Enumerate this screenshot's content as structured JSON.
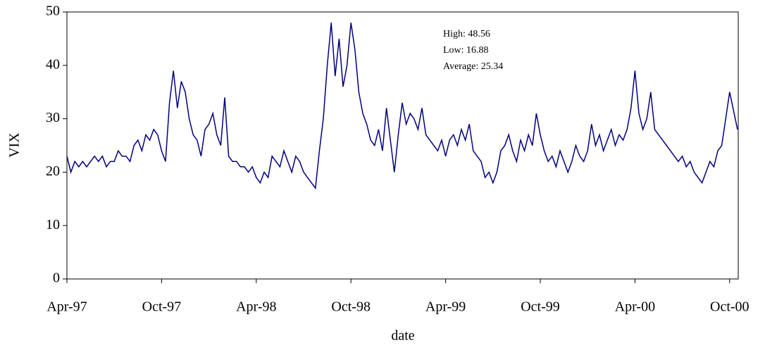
{
  "chart_data": {
    "type": "line",
    "title": null,
    "xlabel": "date",
    "ylabel": "VIX",
    "annotations": [
      "High: 48.56",
      "Low: 16.88",
      "Average: 25.34"
    ],
    "x": [
      "Apr-97",
      "Apr-97",
      "Apr-97",
      "Apr-97",
      "May-97",
      "May-97",
      "May-97",
      "May-97",
      "Jun-97",
      "Jun-97",
      "Jun-97",
      "Jun-97",
      "Jul-97",
      "Jul-97",
      "Jul-97",
      "Jul-97",
      "Aug-97",
      "Aug-97",
      "Aug-97",
      "Aug-97",
      "Sep-97",
      "Sep-97",
      "Sep-97",
      "Sep-97",
      "Oct-97",
      "Oct-97",
      "Oct-97",
      "Oct-97",
      "Nov-97",
      "Nov-97",
      "Nov-97",
      "Nov-97",
      "Dec-97",
      "Dec-97",
      "Dec-97",
      "Dec-97",
      "Jan-98",
      "Jan-98",
      "Jan-98",
      "Jan-98",
      "Feb-98",
      "Feb-98",
      "Feb-98",
      "Feb-98",
      "Mar-98",
      "Mar-98",
      "Mar-98",
      "Mar-98",
      "Apr-98",
      "Apr-98",
      "Apr-98",
      "Apr-98",
      "May-98",
      "May-98",
      "May-98",
      "May-98",
      "Jun-98",
      "Jun-98",
      "Jun-98",
      "Jun-98",
      "Jul-98",
      "Jul-98",
      "Jul-98",
      "Jul-98",
      "Aug-98",
      "Aug-98",
      "Aug-98",
      "Aug-98",
      "Sep-98",
      "Sep-98",
      "Sep-98",
      "Sep-98",
      "Oct-98",
      "Oct-98",
      "Oct-98",
      "Oct-98",
      "Nov-98",
      "Nov-98",
      "Nov-98",
      "Nov-98",
      "Dec-98",
      "Dec-98",
      "Dec-98",
      "Dec-98",
      "Jan-99",
      "Jan-99",
      "Jan-99",
      "Jan-99",
      "Feb-99",
      "Feb-99",
      "Feb-99",
      "Feb-99",
      "Mar-99",
      "Mar-99",
      "Mar-99",
      "Mar-99",
      "Apr-99",
      "Apr-99",
      "Apr-99",
      "Apr-99",
      "May-99",
      "May-99",
      "May-99",
      "May-99",
      "Jun-99",
      "Jun-99",
      "Jun-99",
      "Jun-99",
      "Jul-99",
      "Jul-99",
      "Jul-99",
      "Jul-99",
      "Aug-99",
      "Aug-99",
      "Aug-99",
      "Aug-99",
      "Sep-99",
      "Sep-99",
      "Sep-99",
      "Sep-99",
      "Oct-99",
      "Oct-99",
      "Oct-99",
      "Oct-99",
      "Nov-99",
      "Nov-99",
      "Nov-99",
      "Nov-99",
      "Dec-99",
      "Dec-99",
      "Dec-99",
      "Dec-99",
      "Jan-00",
      "Jan-00",
      "Jan-00",
      "Jan-00",
      "Feb-00",
      "Feb-00",
      "Feb-00",
      "Feb-00",
      "Mar-00",
      "Mar-00",
      "Mar-00",
      "Mar-00",
      "Apr-00",
      "Apr-00",
      "Apr-00",
      "Apr-00",
      "May-00",
      "May-00",
      "May-00",
      "May-00",
      "Jun-00",
      "Jun-00",
      "Jun-00",
      "Jun-00",
      "Jul-00",
      "Jul-00",
      "Jul-00",
      "Jul-00",
      "Aug-00",
      "Aug-00",
      "Aug-00",
      "Aug-00",
      "Sep-00",
      "Sep-00",
      "Sep-00",
      "Sep-00",
      "Oct-00",
      "Oct-00"
    ],
    "series": [
      {
        "name": "VIX",
        "color": "#000080",
        "values": [
          23,
          20,
          22,
          21,
          22,
          21,
          22,
          23,
          22,
          23,
          21,
          22,
          22,
          24,
          23,
          23,
          22,
          25,
          26,
          24,
          27,
          26,
          28,
          27,
          24,
          22,
          33,
          39,
          32,
          37,
          35,
          30,
          27,
          26,
          23,
          28,
          29,
          31,
          27,
          25,
          34,
          23,
          22,
          22,
          21,
          21,
          20,
          21,
          19,
          18,
          20,
          19,
          23,
          22,
          21,
          24,
          22,
          20,
          23,
          22,
          20,
          19,
          18,
          17,
          24,
          30,
          40,
          48,
          38,
          45,
          36,
          40,
          48,
          43,
          35,
          31,
          29,
          26,
          25,
          28,
          24,
          32,
          26,
          20,
          27,
          33,
          29,
          31,
          30,
          28,
          32,
          27,
          26,
          25,
          24,
          26,
          23,
          26,
          27,
          25,
          28,
          26,
          29,
          24,
          23,
          22,
          19,
          20,
          18,
          20,
          24,
          25,
          27,
          24,
          22,
          26,
          24,
          27,
          25,
          31,
          27,
          24,
          22,
          23,
          21,
          24,
          22,
          20,
          22,
          25,
          23,
          22,
          24,
          29,
          25,
          27,
          24,
          26,
          28,
          25,
          27,
          26,
          28,
          32,
          39,
          31,
          28,
          30,
          35,
          28,
          27,
          26,
          25,
          24,
          23,
          22,
          23,
          21,
          22,
          20,
          19,
          18,
          20,
          22,
          21,
          24,
          25,
          30,
          35,
          28
        ]
      }
    ],
    "xticks": [
      "Apr-97",
      "Oct-97",
      "Apr-98",
      "Oct-98",
      "Apr-99",
      "Oct-99",
      "Apr-00",
      "Oct-00"
    ],
    "ylim": [
      0,
      50
    ],
    "yticks": [
      0,
      10,
      20,
      30,
      40,
      50
    ],
    "grid": false
  }
}
